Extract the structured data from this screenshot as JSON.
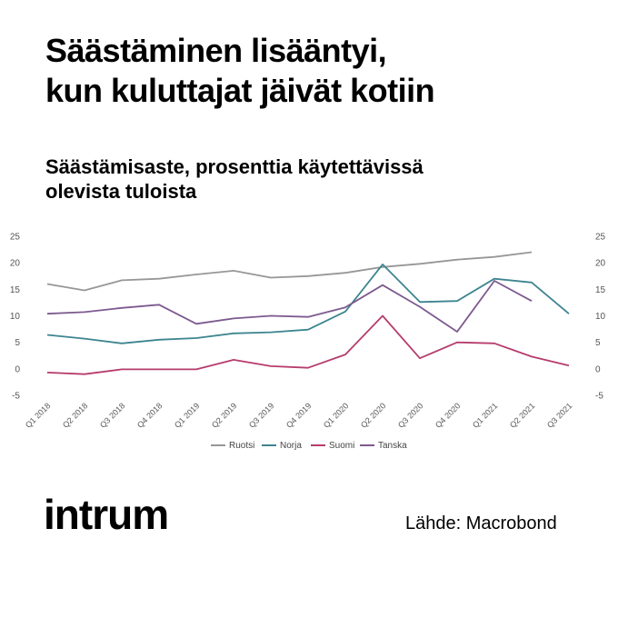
{
  "title": {
    "line1": "Säästäminen lisääntyi,",
    "line2": "kun kuluttajat jäivät kotiin"
  },
  "subtitle": {
    "line1": "Säästämisaste, prosenttia käytettävissä",
    "line2": "olevista tuloista"
  },
  "brand": {
    "logo_text": "intrum"
  },
  "source": {
    "text": "Lähde: Macrobond"
  },
  "chart_data": {
    "type": "line",
    "title": "Säästämisaste, prosenttia käytettävissä olevista tuloista",
    "xlabel": "",
    "ylabel": "",
    "ylim": [
      -5,
      25
    ],
    "yticks": [
      25,
      20,
      15,
      10,
      5,
      0,
      -5
    ],
    "grid": false,
    "legend_position": "bottom",
    "categories": [
      "Q1 2018",
      "Q2 2018",
      "Q3 2018",
      "Q4 2018",
      "Q1 2019",
      "Q2 2019",
      "Q3 2019",
      "Q4 2019",
      "Q1 2020",
      "Q2 2020",
      "Q3 2020",
      "Q4 2020",
      "Q1 2021",
      "Q2 2021",
      "Q3 2021"
    ],
    "series": [
      {
        "name": "Ruotsi",
        "color": "#979797",
        "values": [
          16.0,
          14.8,
          16.7,
          17.0,
          17.8,
          18.5,
          17.2,
          17.5,
          18.1,
          19.2,
          19.8,
          20.6,
          21.1,
          22.0,
          null
        ]
      },
      {
        "name": "Norja",
        "color": "#3d8590",
        "values": [
          6.4,
          5.7,
          4.8,
          5.5,
          5.8,
          6.7,
          6.9,
          7.4,
          10.8,
          19.7,
          12.6,
          12.8,
          17.0,
          16.3,
          10.4
        ]
      },
      {
        "name": "Suomi",
        "color": "#b63c6d",
        "values": [
          -0.7,
          -1.0,
          -0.1,
          -0.1,
          -0.1,
          1.7,
          0.5,
          0.2,
          2.7,
          10.0,
          2.0,
          5.0,
          4.8,
          2.3,
          0.6
        ]
      },
      {
        "name": "Tanska",
        "color": "#7d5a8f",
        "values": [
          10.4,
          10.7,
          11.5,
          12.1,
          8.5,
          9.5,
          10.0,
          9.8,
          11.6,
          15.8,
          11.7,
          7.0,
          16.6,
          12.8,
          null
        ]
      }
    ]
  }
}
